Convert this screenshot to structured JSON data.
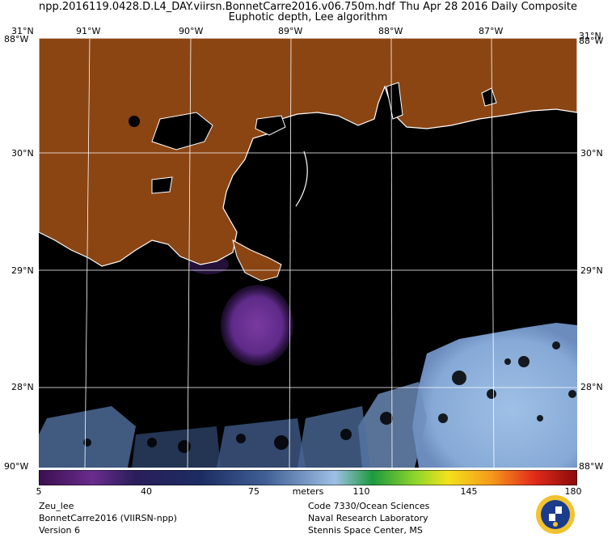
{
  "header": {
    "file_name": "npp.2016119.0428.D.L4_DAY.viirsn.BonnetCarre2016.v06.750m.hdf",
    "date_label": "Thu Apr 28 2016 Daily Composite",
    "product": "Euphotic depth, Lee algorithm"
  },
  "axes": {
    "lon_labels": [
      "91°W",
      "90°W",
      "89°W",
      "88°W",
      "87°W"
    ],
    "lat_labels": [
      "31°N",
      "30°N",
      "29°N",
      "28°N"
    ],
    "corner_top_left_left": "31°N",
    "corner_top_left_right": "88°W",
    "corner_top_right_left": "31°N",
    "corner_top_right_right": "88°W",
    "corner_bottom_left": "90°W",
    "corner_bottom_right": "88°W"
  },
  "colorbar": {
    "ticks": [
      "5",
      "40",
      "75",
      "110",
      "145",
      "180"
    ],
    "unit": "meters",
    "min": 5,
    "max": 180
  },
  "footer": {
    "left_1": "Zeu_lee",
    "left_2": "BonnetCarre2016 (VIIRSN-npp)",
    "left_3": "Version 6",
    "right_1": "Code 7330/Ocean Sciences",
    "right_2": "Naval Research Laboratory",
    "right_3": "Stennis Space Center, MS"
  },
  "colors": {
    "land": "#8b4513",
    "ocean_nodata": "#000000",
    "coastline": "#ffffff",
    "grid": "#ffffff",
    "plume_purple": "#6a2f92",
    "clear_water_blue": "#8fb2dc"
  }
}
